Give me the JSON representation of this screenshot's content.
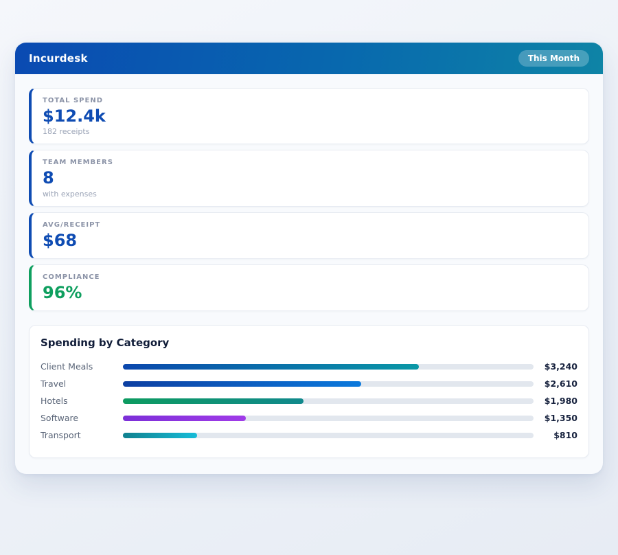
{
  "header": {
    "app_title": "Incurdesk",
    "period_badge": "This Month"
  },
  "stats": [
    {
      "label": "TOTAL SPEND",
      "value": "$12.4k",
      "sub": "182 receipts",
      "accent": "#0f4cb3",
      "value_color": "#0f4cb3"
    },
    {
      "label": "TEAM MEMBERS",
      "value": "8",
      "sub": "with expenses",
      "accent": "#0f4cb3",
      "value_color": "#0f4cb3"
    },
    {
      "label": "AVG/RECEIPT",
      "value": "$68",
      "sub": "",
      "accent": "#0f4cb3",
      "value_color": "#0f4cb3"
    },
    {
      "label": "COMPLIANCE",
      "value": "96%",
      "sub": "",
      "accent": "#0f9f5f",
      "value_color": "#0f9f5f"
    }
  ],
  "chart_data": {
    "type": "bar",
    "orientation": "horizontal",
    "title": "Spending by Category",
    "categories": [
      "Client Meals",
      "Travel",
      "Hotels",
      "Software",
      "Transport"
    ],
    "values": [
      3240,
      2610,
      1980,
      1350,
      810
    ],
    "value_labels": [
      "$3,240",
      "$2,610",
      "$1,980",
      "$1,350",
      "$810"
    ],
    "axis_max": 4500,
    "grid": false,
    "legend": false,
    "track_color": "#e2e7ee",
    "bar_gradients": [
      [
        "#0b47ad",
        "#0a98a6"
      ],
      [
        "#0c3fa2",
        "#0b79dc"
      ],
      [
        "#0d9b60",
        "#11898c"
      ],
      [
        "#7c2fd8",
        "#a03be8"
      ],
      [
        "#10818f",
        "#17bcd8"
      ]
    ]
  },
  "colors": {
    "header_gradient_start": "#0a4ab2",
    "header_gradient_mid": "#0868ae",
    "header_gradient_end": "#0e84a6",
    "container_bg": "#f8fafd",
    "card_border": "#e7ebf2",
    "accent_blue": "#0f4cb3",
    "accent_green": "#0f9f5f"
  }
}
